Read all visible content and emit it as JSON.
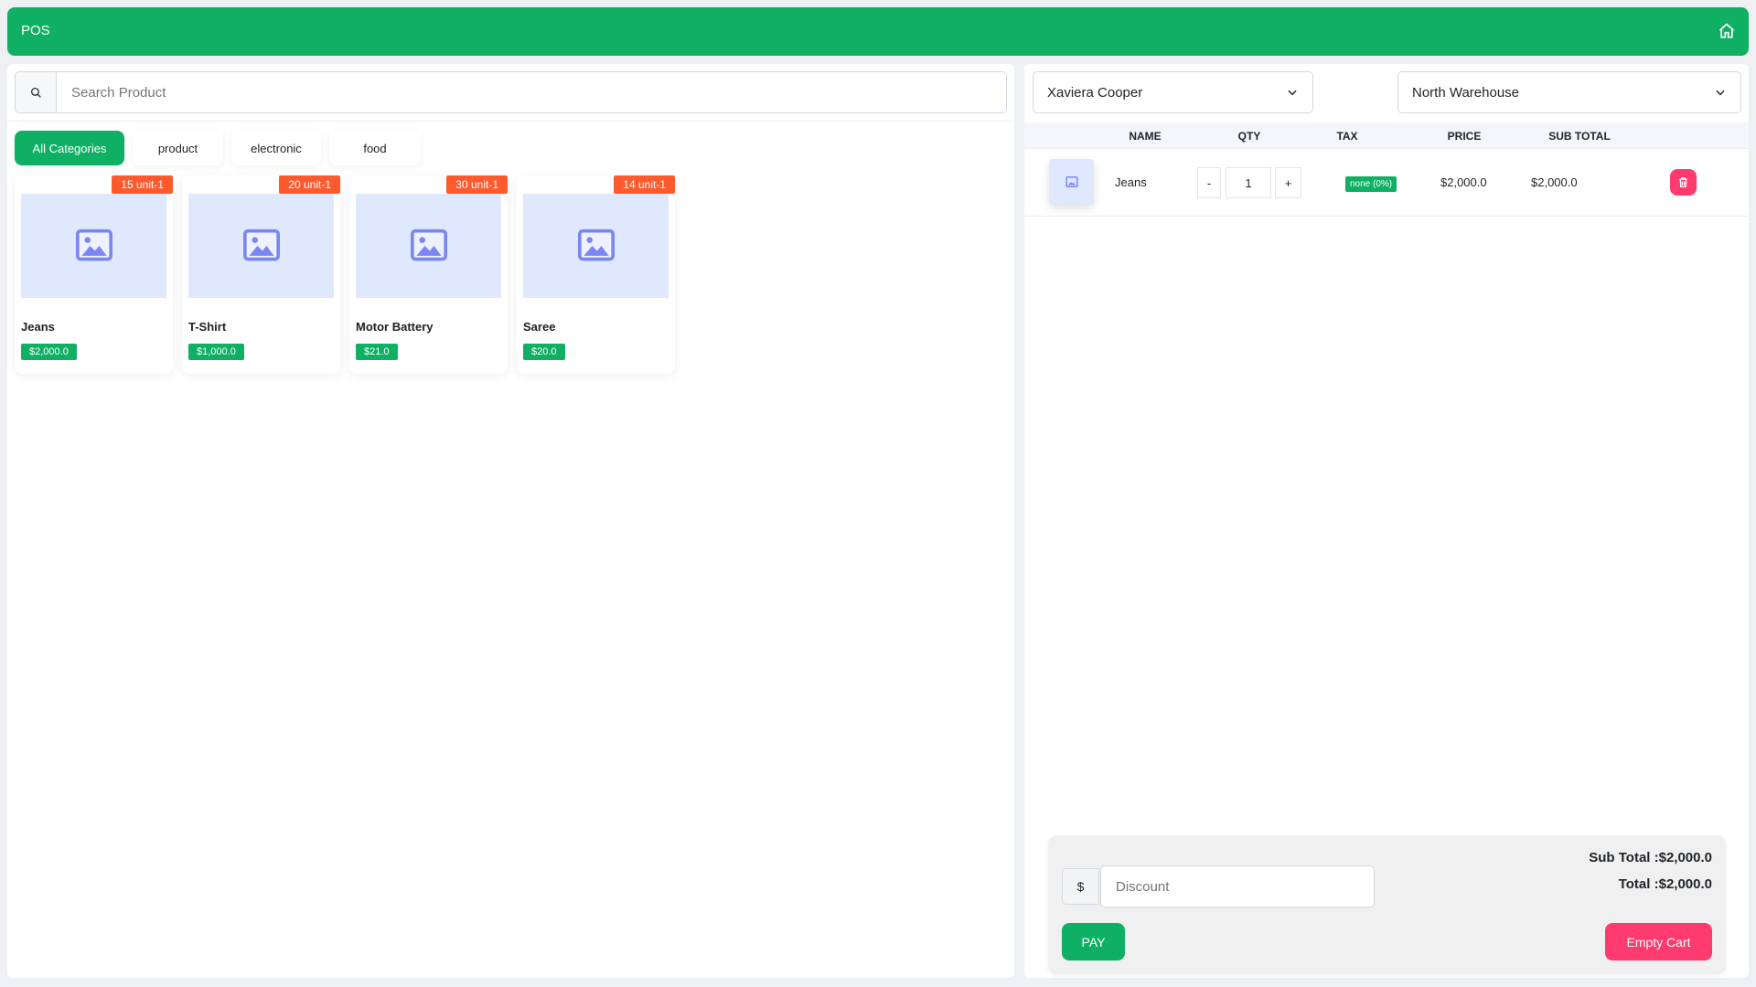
{
  "header": {
    "title": "POS",
    "home_icon": "home-icon"
  },
  "search": {
    "placeholder": "Search Product",
    "value": ""
  },
  "categories": [
    {
      "label": "All Categories",
      "active": true
    },
    {
      "label": "product"
    },
    {
      "label": "electronic"
    },
    {
      "label": "food"
    }
  ],
  "products": [
    {
      "name": "Jeans",
      "price": "$2,000.0",
      "stock": "15 unit-1"
    },
    {
      "name": "T-Shirt",
      "price": "$1,000.0",
      "stock": "20 unit-1"
    },
    {
      "name": "Motor Battery",
      "price": "$21.0",
      "stock": "30 unit-1"
    },
    {
      "name": "Saree",
      "price": "$20.0",
      "stock": "14 unit-1"
    }
  ],
  "customer_select": {
    "value": "Xaviera Cooper"
  },
  "warehouse_select": {
    "value": "North Warehouse"
  },
  "cart": {
    "columns": [
      "NAME",
      "QTY",
      "TAX",
      "PRICE",
      "SUB TOTAL"
    ],
    "items": [
      {
        "name": "Jeans",
        "qty": "1",
        "tax": "none (0%)",
        "price": "$2,000.0",
        "subtotal": "$2,000.0",
        "minus": "-",
        "plus": "+"
      }
    ]
  },
  "footer": {
    "currency": "$",
    "discount_placeholder": "Discount",
    "sub_total": "Sub Total :$2,000.0",
    "total": "Total :$2,000.0",
    "pay_label": "PAY",
    "empty_label": "Empty Cart"
  },
  "colors": {
    "brand": "#10b064",
    "stock_badge": "#ff5a2e",
    "danger": "#ff3a6e"
  }
}
